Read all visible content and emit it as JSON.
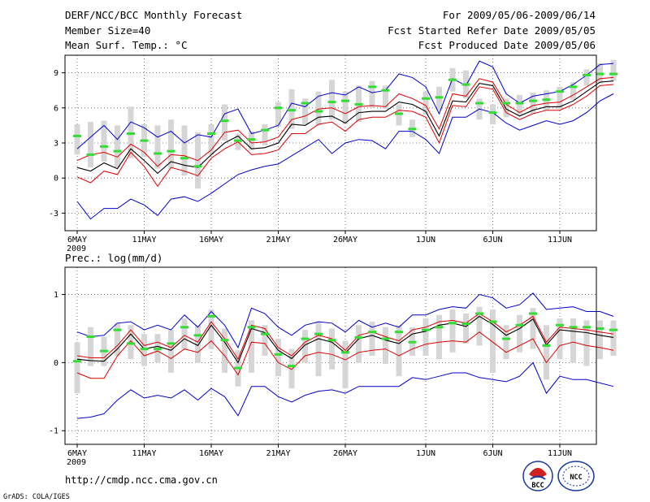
{
  "header": {
    "left": [
      "DERF/NCC/BCC Monthly Forecast",
      "Member Size=40",
      "Mean Surf. Temp.: °C"
    ],
    "right": [
      "For 2009/05/06-2009/06/14",
      "Fcst Started Refer Date 2009/05/05",
      "Fcst Produced Date 2009/05/06"
    ]
  },
  "panel2_title": "Prec.: log(mm/d)",
  "footer": {
    "url": "http://cmdp.ncc.cma.gov.cn",
    "credit": "GrADS: COLA/IGES"
  },
  "logos": {
    "left": "BCC",
    "right": "NCC"
  },
  "colors": {
    "max_min": "#0000cc",
    "spread": "#dd0000",
    "mean": "#000000",
    "median": "#33dd33",
    "box": "#d6d6d6"
  },
  "chart_data": [
    {
      "type": "line",
      "title": "Mean Surf. Temp.: °C",
      "x_tick_labels": [
        "6MAY",
        "11MAY",
        "16MAY",
        "21MAY",
        "26MAY",
        "1JUN",
        "6JUN",
        "11JUN"
      ],
      "x_tick_days": [
        1,
        6,
        11,
        16,
        21,
        27,
        32,
        37
      ],
      "year_label": "2009",
      "y_ticks": [
        -3,
        0,
        3,
        6,
        9
      ],
      "ylim": [
        -4.5,
        10.5
      ],
      "series": [
        {
          "name": "max",
          "values": [
            2.5,
            3.5,
            4.5,
            3.3,
            4.8,
            4.3,
            3.5,
            4.0,
            3.0,
            3.7,
            3.5,
            5.5,
            5.9,
            3.8,
            4.1,
            4.5,
            6.4,
            6.1,
            7.0,
            7.3,
            7.1,
            7.8,
            7.3,
            7.5,
            8.9,
            8.6,
            7.8,
            5.5,
            8.5,
            7.9,
            10.0,
            9.5,
            7.2,
            6.4,
            7.0,
            7.2,
            7.4,
            8.0,
            8.8,
            9.7,
            9.8
          ]
        },
        {
          "name": "upper",
          "values": [
            1.5,
            2.0,
            2.2,
            1.8,
            2.9,
            2.2,
            1.0,
            2.0,
            1.9,
            1.5,
            2.4,
            3.9,
            4.1,
            3.0,
            3.1,
            3.5,
            5.0,
            5.3,
            5.9,
            6.0,
            5.5,
            6.1,
            6.2,
            6.1,
            7.2,
            6.8,
            6.2,
            4.2,
            7.2,
            7.0,
            8.5,
            8.2,
            6.3,
            5.6,
            6.2,
            6.4,
            6.5,
            7.1,
            7.8,
            8.5,
            8.6
          ]
        },
        {
          "name": "mean",
          "values": [
            0.9,
            0.6,
            1.3,
            0.8,
            2.5,
            1.5,
            0.4,
            1.4,
            1.1,
            0.9,
            2.0,
            3.0,
            3.6,
            2.5,
            2.6,
            3.0,
            4.6,
            4.5,
            5.2,
            5.3,
            4.7,
            5.6,
            5.7,
            5.7,
            6.5,
            6.3,
            5.7,
            3.6,
            6.6,
            6.5,
            8.1,
            7.9,
            5.9,
            5.3,
            5.8,
            6.1,
            6.1,
            6.6,
            7.4,
            8.2,
            8.3
          ]
        },
        {
          "name": "lower",
          "values": [
            0.1,
            -0.4,
            0.6,
            0.3,
            2.2,
            1.0,
            -0.7,
            0.9,
            0.6,
            0.2,
            1.7,
            2.5,
            3.1,
            2.0,
            2.1,
            2.4,
            3.8,
            3.8,
            4.6,
            4.8,
            4.0,
            5.0,
            5.2,
            5.2,
            5.8,
            5.7,
            5.2,
            3.0,
            6.2,
            6.1,
            7.8,
            7.6,
            5.6,
            5.0,
            5.5,
            5.8,
            5.8,
            6.3,
            7.0,
            7.9,
            8.0
          ]
        },
        {
          "name": "min",
          "values": [
            -2.0,
            -3.5,
            -2.6,
            -2.6,
            -1.8,
            -2.3,
            -3.2,
            -1.8,
            -1.6,
            -2.0,
            -1.3,
            -0.5,
            0.3,
            0.7,
            1.0,
            1.2,
            1.9,
            2.6,
            3.3,
            2.1,
            3.0,
            3.3,
            3.2,
            2.5,
            4.0,
            4.0,
            3.3,
            2.1,
            5.2,
            5.2,
            5.9,
            5.6,
            4.7,
            4.1,
            4.5,
            4.9,
            4.6,
            4.9,
            5.6,
            6.6,
            7.2
          ]
        },
        {
          "name": "median",
          "values": [
            3.6,
            2.0,
            2.7,
            2.3,
            3.8,
            3.2,
            2.1,
            2.3,
            1.7,
            1.0,
            3.8,
            4.9,
            3.2,
            3.3,
            4.1,
            6.0,
            5.8,
            6.4,
            5.7,
            6.5,
            6.6,
            6.3,
            7.8,
            7.5,
            5.5,
            4.2,
            6.8,
            6.9,
            8.4,
            8.0,
            6.4,
            5.6,
            6.4,
            6.4,
            6.6,
            6.7,
            7.4,
            7.8,
            8.8,
            8.9,
            8.9
          ]
        },
        {
          "name": "box_top",
          "values": [
            4.6,
            4.8,
            4.9,
            4.5,
            6.1,
            4.6,
            4.5,
            5.0,
            4.5,
            3.9,
            4.6,
            6.3,
            3.8,
            4.0,
            4.6,
            6.5,
            7.6,
            6.8,
            7.4,
            8.4,
            7.4,
            7.9,
            8.3,
            7.9,
            6.3,
            5.0,
            7.4,
            7.8,
            9.4,
            9.2,
            6.8,
            6.3,
            6.8,
            7.1,
            7.3,
            7.5,
            7.8,
            8.2,
            9.3,
            9.8,
            10.1
          ]
        },
        {
          "name": "box_bottom",
          "values": [
            2.0,
            0.9,
            1.4,
            0.9,
            1.7,
            1.8,
            0.8,
            0.8,
            0.2,
            -0.9,
            2.0,
            3.2,
            2.4,
            2.4,
            2.8,
            4.4,
            4.2,
            4.6,
            4.5,
            5.0,
            4.6,
            4.8,
            6.0,
            5.9,
            4.5,
            3.5,
            5.4,
            5.8,
            7.4,
            6.8,
            5.0,
            4.6,
            5.2,
            5.4,
            5.5,
            5.8,
            5.9,
            6.7,
            7.9,
            8.1,
            8.3
          ]
        }
      ]
    },
    {
      "type": "line",
      "title": "Prec.: log(mm/d)",
      "x_tick_labels": [
        "6MAY",
        "11MAY",
        "16MAY",
        "21MAY",
        "26MAY",
        "1JUN",
        "6JUN",
        "11JUN"
      ],
      "x_tick_days": [
        1,
        6,
        11,
        16,
        21,
        27,
        32,
        37
      ],
      "year_label": "2009",
      "y_ticks": [
        -1,
        0,
        1
      ],
      "ylim": [
        -1.2,
        1.4
      ],
      "series": [
        {
          "name": "max",
          "values": [
            0.45,
            0.38,
            0.4,
            0.58,
            0.6,
            0.48,
            0.55,
            0.48,
            0.7,
            0.52,
            0.75,
            0.55,
            0.22,
            0.8,
            0.72,
            0.52,
            0.4,
            0.55,
            0.6,
            0.58,
            0.45,
            0.62,
            0.52,
            0.58,
            0.52,
            0.7,
            0.7,
            0.78,
            0.82,
            0.8,
            1.0,
            0.95,
            0.8,
            0.85,
            1.02,
            0.78,
            0.8,
            0.82,
            0.75,
            0.75,
            0.68
          ]
        },
        {
          "name": "upper",
          "values": [
            0.1,
            0.07,
            0.07,
            0.25,
            0.48,
            0.25,
            0.3,
            0.22,
            0.4,
            0.3,
            0.6,
            0.35,
            0.05,
            0.55,
            0.5,
            0.22,
            0.1,
            0.3,
            0.4,
            0.35,
            0.18,
            0.4,
            0.45,
            0.38,
            0.32,
            0.48,
            0.52,
            0.6,
            0.62,
            0.58,
            0.72,
            0.6,
            0.45,
            0.55,
            0.68,
            0.3,
            0.52,
            0.5,
            0.48,
            0.45,
            0.42
          ]
        },
        {
          "name": "mean",
          "values": [
            0.05,
            0.03,
            0.02,
            0.2,
            0.42,
            0.2,
            0.24,
            0.18,
            0.35,
            0.25,
            0.55,
            0.3,
            0.0,
            0.5,
            0.44,
            0.18,
            0.06,
            0.26,
            0.35,
            0.3,
            0.14,
            0.35,
            0.4,
            0.33,
            0.28,
            0.42,
            0.46,
            0.55,
            0.58,
            0.53,
            0.68,
            0.56,
            0.4,
            0.5,
            0.64,
            0.26,
            0.48,
            0.46,
            0.44,
            0.4,
            0.37
          ]
        },
        {
          "name": "lower",
          "values": [
            -0.15,
            -0.23,
            -0.23,
            0.1,
            0.32,
            0.1,
            0.17,
            0.06,
            0.2,
            0.15,
            0.32,
            0.1,
            -0.18,
            0.3,
            0.28,
            0.0,
            -0.1,
            0.1,
            0.15,
            0.12,
            0.04,
            0.15,
            0.18,
            0.2,
            0.1,
            0.2,
            0.27,
            0.3,
            0.32,
            0.3,
            0.45,
            0.3,
            0.15,
            0.25,
            0.35,
            0.0,
            0.25,
            0.3,
            0.25,
            0.22,
            0.18
          ]
        },
        {
          "name": "min",
          "values": [
            -0.82,
            -0.8,
            -0.75,
            -0.55,
            -0.4,
            -0.52,
            -0.48,
            -0.52,
            -0.4,
            -0.55,
            -0.38,
            -0.5,
            -0.78,
            -0.35,
            -0.35,
            -0.5,
            -0.58,
            -0.48,
            -0.42,
            -0.4,
            -0.45,
            -0.35,
            -0.35,
            -0.35,
            -0.35,
            -0.22,
            -0.25,
            -0.2,
            -0.15,
            -0.15,
            -0.22,
            -0.25,
            -0.28,
            -0.2,
            0.0,
            -0.45,
            -0.2,
            -0.25,
            -0.25,
            -0.3,
            -0.35
          ]
        },
        {
          "name": "median",
          "values": [
            0.02,
            0.38,
            0.17,
            0.48,
            0.28,
            0.2,
            0.2,
            0.28,
            0.52,
            0.4,
            0.68,
            0.33,
            -0.08,
            0.52,
            0.42,
            0.12,
            -0.05,
            0.35,
            0.42,
            0.33,
            0.15,
            0.37,
            0.45,
            0.35,
            0.45,
            0.3,
            0.48,
            0.52,
            0.58,
            0.57,
            0.72,
            0.6,
            0.35,
            0.55,
            0.72,
            0.25,
            0.55,
            0.52,
            0.52,
            0.5,
            0.48
          ]
        },
        {
          "name": "box_top",
          "values": [
            0.3,
            0.52,
            0.38,
            0.58,
            0.55,
            0.42,
            0.42,
            0.48,
            0.65,
            0.55,
            0.78,
            0.5,
            0.18,
            0.62,
            0.55,
            0.35,
            0.2,
            0.48,
            0.6,
            0.5,
            0.32,
            0.55,
            0.6,
            0.52,
            0.55,
            0.52,
            0.65,
            0.7,
            0.78,
            0.72,
            0.82,
            0.78,
            0.55,
            0.7,
            0.8,
            0.55,
            0.65,
            0.65,
            0.62,
            0.62,
            0.62
          ]
        },
        {
          "name": "box_bottom",
          "values": [
            -0.45,
            -0.05,
            -0.05,
            0.1,
            0.05,
            -0.05,
            0.0,
            -0.15,
            0.2,
            0.0,
            0.2,
            -0.15,
            -0.35,
            -0.15,
            0.1,
            -0.2,
            -0.38,
            0.0,
            -0.2,
            -0.1,
            -0.38,
            0.0,
            0.1,
            -0.02,
            -0.2,
            0.1,
            0.1,
            0.05,
            0.15,
            0.28,
            0.25,
            -0.15,
            0.05,
            0.15,
            0.2,
            -0.25,
            0.05,
            0.0,
            -0.05,
            0.05,
            0.1
          ]
        }
      ]
    }
  ]
}
